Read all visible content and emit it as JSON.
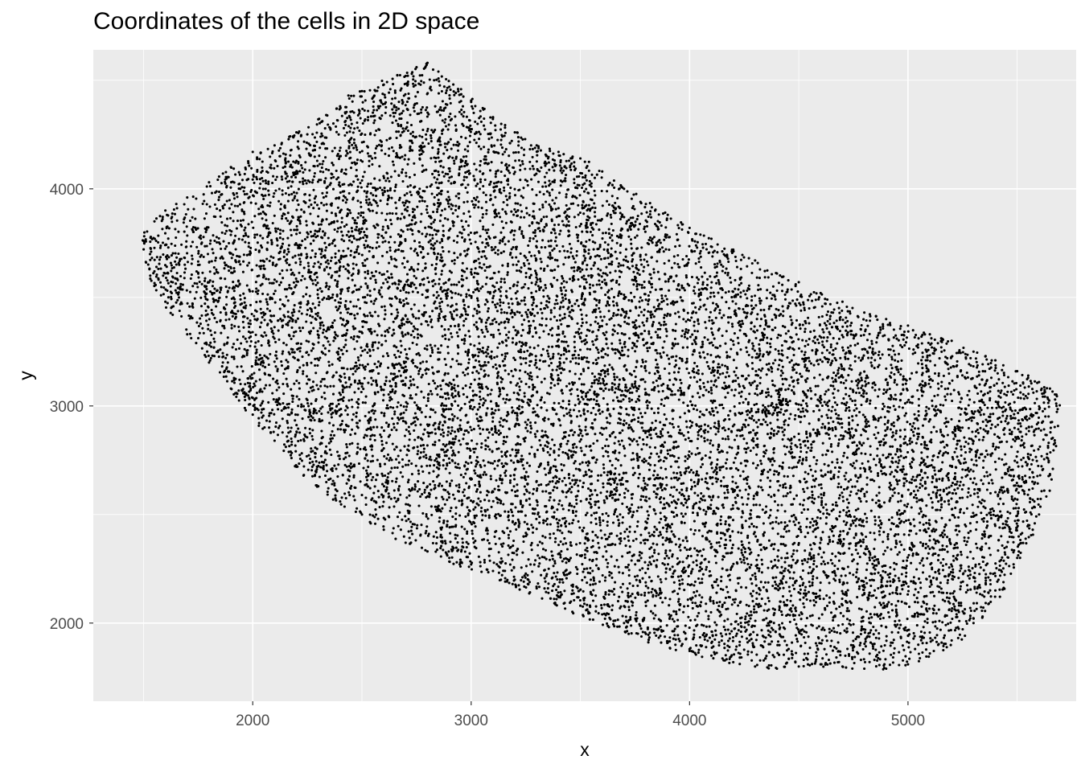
{
  "chart_data": {
    "type": "scatter",
    "title": "Coordinates of the cells in 2D space",
    "xlabel": "x",
    "ylabel": "y",
    "xlim": [
      1270,
      5770
    ],
    "ylim": [
      1640,
      4640
    ],
    "x_ticks": [
      2000,
      3000,
      4000,
      5000
    ],
    "x_tick_labels": [
      "2000",
      "3000",
      "4000",
      "5000"
    ],
    "y_ticks": [
      2000,
      3000,
      4000
    ],
    "y_tick_labels": [
      "2000",
      "3000",
      "4000"
    ],
    "x_minor_breaks": [
      1500,
      2500,
      3500,
      4500,
      5500
    ],
    "y_minor_breaks": [
      2500,
      3500,
      4500
    ],
    "grid": true,
    "legend": "none",
    "panel_color": "#EBEBEB",
    "grid_color": "#FFFFFF",
    "point_color": "#000000",
    "point_count_approx": 14000,
    "region_boundary": [
      [
        1480,
        3780
      ],
      [
        1560,
        3870
      ],
      [
        1700,
        3960
      ],
      [
        1900,
        4100
      ],
      [
        2100,
        4200
      ],
      [
        2300,
        4320
      ],
      [
        2450,
        4440
      ],
      [
        2620,
        4510
      ],
      [
        2800,
        4580
      ],
      [
        2950,
        4470
      ],
      [
        3100,
        4340
      ],
      [
        3250,
        4240
      ],
      [
        3400,
        4170
      ],
      [
        3520,
        4140
      ],
      [
        3650,
        4050
      ],
      [
        3800,
        3950
      ],
      [
        4000,
        3820
      ],
      [
        4200,
        3720
      ],
      [
        4400,
        3610
      ],
      [
        4600,
        3520
      ],
      [
        4800,
        3430
      ],
      [
        5000,
        3370
      ],
      [
        5200,
        3300
      ],
      [
        5400,
        3210
      ],
      [
        5600,
        3120
      ],
      [
        5700,
        3060
      ],
      [
        5690,
        2900
      ],
      [
        5650,
        2600
      ],
      [
        5570,
        2400
      ],
      [
        5500,
        2250
      ],
      [
        5380,
        2050
      ],
      [
        5250,
        1920
      ],
      [
        5100,
        1840
      ],
      [
        4950,
        1780
      ],
      [
        4750,
        1790
      ],
      [
        4550,
        1800
      ],
      [
        4350,
        1790
      ],
      [
        4150,
        1820
      ],
      [
        3950,
        1870
      ],
      [
        3750,
        1930
      ],
      [
        3500,
        2030
      ],
      [
        3300,
        2120
      ],
      [
        3100,
        2200
      ],
      [
        2900,
        2280
      ],
      [
        2700,
        2360
      ],
      [
        2500,
        2480
      ],
      [
        2350,
        2580
      ],
      [
        2200,
        2700
      ],
      [
        2050,
        2880
      ],
      [
        1900,
        3060
      ],
      [
        1780,
        3230
      ],
      [
        1620,
        3420
      ],
      [
        1520,
        3600
      ]
    ],
    "series": [
      {
        "x": [
          1500,
          1550,
          1600,
          1650,
          1700,
          1800,
          1900,
          2000,
          2100,
          2200,
          2300,
          2400,
          2500,
          2600,
          2700,
          2750,
          2800,
          2850,
          2900,
          3000,
          3100,
          3200,
          3300,
          3400,
          3500,
          3600,
          3700,
          3800,
          3900,
          4000,
          4100,
          4200,
          4300,
          4400,
          4500,
          4600,
          4700,
          4800,
          4900,
          5000,
          5100,
          5200,
          5300,
          5400,
          5500,
          5600,
          5650,
          5680,
          5600,
          5500,
          5400,
          5300,
          5200,
          5100,
          5000,
          4900,
          4800,
          4700,
          4600,
          4500,
          4400,
          4300,
          4200,
          4100,
          4000,
          3900,
          3800,
          3700,
          3600,
          3500,
          3400,
          3300,
          3200,
          3100,
          3000,
          2900,
          2800,
          2700,
          2600,
          2500,
          2400,
          2300,
          2200,
          2100,
          2000,
          1900,
          1800,
          1700,
          1600,
          1550
        ],
        "y": [
          3760,
          3850,
          3900,
          3930,
          3960,
          4030,
          4100,
          4170,
          4200,
          4260,
          4320,
          4380,
          4450,
          4480,
          4520,
          4560,
          4580,
          4540,
          4470,
          4400,
          4330,
          4260,
          4200,
          4170,
          4140,
          4080,
          4000,
          3930,
          3880,
          3820,
          3770,
          3720,
          3670,
          3610,
          3570,
          3520,
          3480,
          3430,
          3400,
          3370,
          3330,
          3300,
          3250,
          3210,
          3160,
          3110,
          3080,
          3000,
          2500,
          2300,
          2150,
          2000,
          1920,
          1860,
          1810,
          1790,
          1790,
          1800,
          1810,
          1800,
          1790,
          1800,
          1820,
          1850,
          1880,
          1910,
          1950,
          2000,
          2040,
          2080,
          2120,
          2160,
          2200,
          2240,
          2270,
          2300,
          2330,
          2370,
          2430,
          2500,
          2560,
          2630,
          2720,
          2840,
          2960,
          3080,
          3200,
          3330,
          3480,
          3620
        ]
      }
    ]
  }
}
